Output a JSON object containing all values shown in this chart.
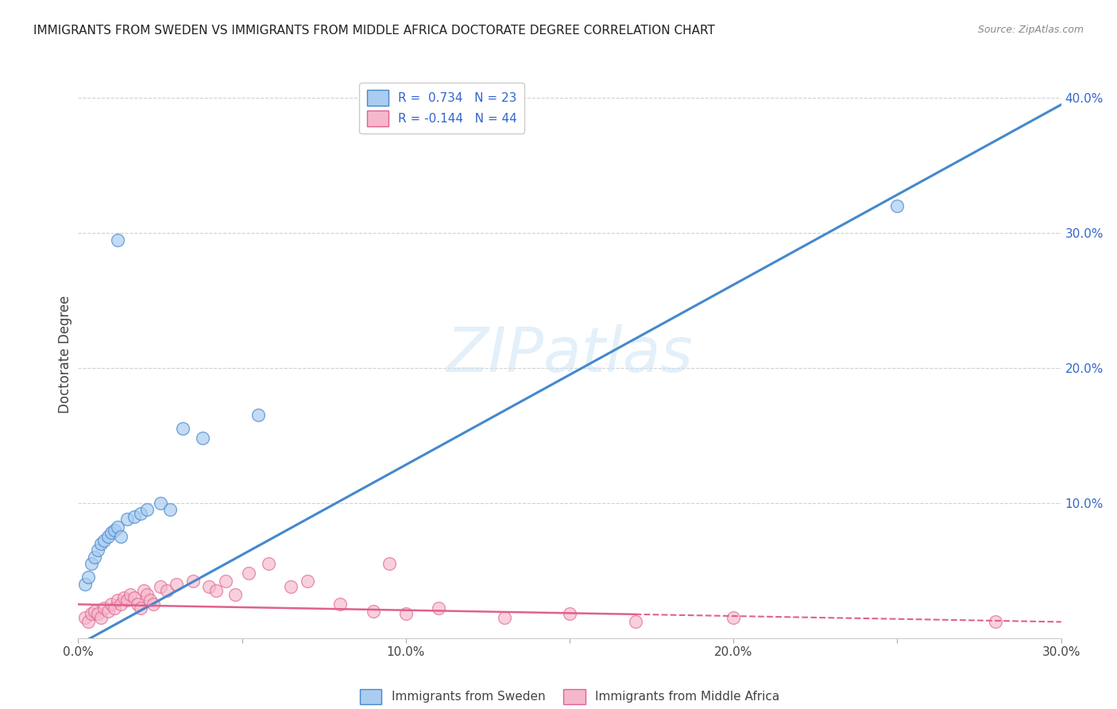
{
  "title": "IMMIGRANTS FROM SWEDEN VS IMMIGRANTS FROM MIDDLE AFRICA DOCTORATE DEGREE CORRELATION CHART",
  "source": "Source: ZipAtlas.com",
  "ylabel": "Doctorate Degree",
  "xlim": [
    0.0,
    0.3
  ],
  "ylim": [
    0.0,
    0.42
  ],
  "xtick_positions": [
    0.0,
    0.05,
    0.1,
    0.15,
    0.2,
    0.25,
    0.3
  ],
  "xtick_labels": [
    "0.0%",
    "",
    "10.0%",
    "",
    "20.0%",
    "",
    "30.0%"
  ],
  "ytick_positions": [
    0.0,
    0.1,
    0.2,
    0.3,
    0.4
  ],
  "ytick_labels_right": [
    "",
    "10.0%",
    "20.0%",
    "30.0%",
    "40.0%"
  ],
  "legend_sweden": "Immigrants from Sweden",
  "legend_middle_africa": "Immigrants from Middle Africa",
  "R_sweden": 0.734,
  "N_sweden": 23,
  "R_middle_africa": -0.144,
  "N_middle_africa": 44,
  "color_sweden": "#aaccf0",
  "color_middle_africa": "#f5b8cb",
  "edge_color_sweden": "#4488cc",
  "edge_color_middle_africa": "#e06090",
  "line_color_sweden": "#4488cc",
  "line_color_middle_africa": "#e06090",
  "watermark": "ZIPatlas",
  "sweden_x": [
    0.002,
    0.003,
    0.004,
    0.005,
    0.006,
    0.007,
    0.008,
    0.009,
    0.01,
    0.011,
    0.012,
    0.013,
    0.015,
    0.017,
    0.019,
    0.021,
    0.025,
    0.028,
    0.032,
    0.038,
    0.055,
    0.012,
    0.25
  ],
  "sweden_y": [
    0.04,
    0.045,
    0.055,
    0.06,
    0.065,
    0.07,
    0.072,
    0.075,
    0.078,
    0.08,
    0.082,
    0.075,
    0.088,
    0.09,
    0.092,
    0.095,
    0.1,
    0.095,
    0.155,
    0.148,
    0.165,
    0.295,
    0.32
  ],
  "middle_africa_x": [
    0.002,
    0.003,
    0.004,
    0.005,
    0.006,
    0.007,
    0.008,
    0.009,
    0.01,
    0.011,
    0.012,
    0.013,
    0.014,
    0.015,
    0.016,
    0.017,
    0.018,
    0.019,
    0.02,
    0.021,
    0.022,
    0.023,
    0.025,
    0.027,
    0.03,
    0.035,
    0.04,
    0.042,
    0.045,
    0.048,
    0.052,
    0.058,
    0.065,
    0.07,
    0.08,
    0.09,
    0.095,
    0.1,
    0.11,
    0.13,
    0.15,
    0.17,
    0.2,
    0.28
  ],
  "middle_africa_y": [
    0.015,
    0.012,
    0.018,
    0.02,
    0.018,
    0.015,
    0.022,
    0.02,
    0.025,
    0.022,
    0.028,
    0.025,
    0.03,
    0.028,
    0.032,
    0.03,
    0.025,
    0.022,
    0.035,
    0.032,
    0.028,
    0.025,
    0.038,
    0.035,
    0.04,
    0.042,
    0.038,
    0.035,
    0.042,
    0.032,
    0.048,
    0.055,
    0.038,
    0.042,
    0.025,
    0.02,
    0.055,
    0.018,
    0.022,
    0.015,
    0.018,
    0.012,
    0.015,
    0.012
  ],
  "sweden_line_x0": 0.0,
  "sweden_line_y0": -0.005,
  "sweden_line_x1": 0.3,
  "sweden_line_y1": 0.395,
  "africa_line_x0": 0.0,
  "africa_line_y0": 0.025,
  "africa_line_x1": 0.3,
  "africa_line_y1": 0.012
}
